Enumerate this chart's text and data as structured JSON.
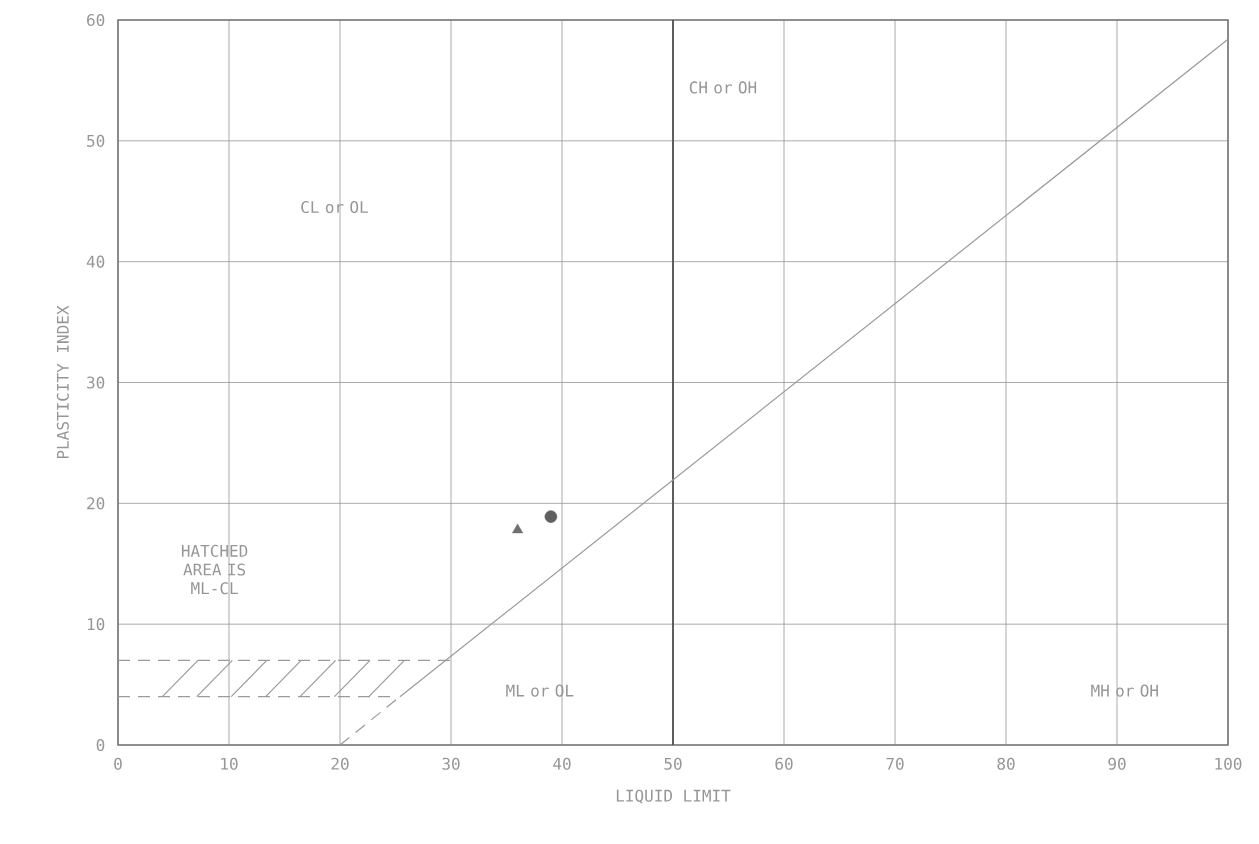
{
  "chart_data": {
    "type": "scatter",
    "xlabel": "LIQUID LIMIT",
    "ylabel": "PLASTICITY INDEX",
    "xlim": [
      0,
      100
    ],
    "ylim": [
      0,
      60
    ],
    "xticks": [
      0,
      10,
      20,
      30,
      40,
      50,
      60,
      70,
      80,
      90,
      100
    ],
    "yticks": [
      0,
      10,
      20,
      30,
      40,
      50,
      60
    ],
    "grid": true,
    "series": [
      {
        "marker": "triangle",
        "color": "#707070",
        "x": [
          36
        ],
        "values": [
          17.8
        ]
      },
      {
        "marker": "circle",
        "color": "#606060",
        "x": [
          39
        ],
        "values": [
          18.9
        ]
      },
      {
        "type": "line",
        "line_style": "solid",
        "color": "#9a9a9a",
        "x": [
          25.4,
          100
        ],
        "values": [
          4,
          58.4
        ]
      },
      {
        "type": "line",
        "line_style": "dashed",
        "color": "#9a9a9a",
        "x": [
          20,
          25.4
        ],
        "values": [
          0,
          4
        ]
      },
      {
        "type": "line",
        "line_style": "dashed",
        "color": "#9a9a9a",
        "x": [
          0,
          30
        ],
        "values": [
          7,
          7
        ]
      },
      {
        "type": "line",
        "line_style": "dashed",
        "color": "#9a9a9a",
        "x": [
          0,
          24.8
        ],
        "values": [
          4,
          4
        ]
      },
      {
        "type": "line",
        "line_style": "solid",
        "color": "#9a9a9a",
        "x": [
          4,
          7.2
        ],
        "values": [
          4,
          7
        ]
      },
      {
        "type": "line",
        "line_style": "solid",
        "color": "#9a9a9a",
        "x": [
          7.1,
          10.3
        ],
        "values": [
          4,
          7
        ]
      },
      {
        "type": "line",
        "line_style": "solid",
        "color": "#9a9a9a",
        "x": [
          10.2,
          13.4
        ],
        "values": [
          4,
          7
        ]
      },
      {
        "type": "line",
        "line_style": "solid",
        "color": "#9a9a9a",
        "x": [
          13.3,
          16.5
        ],
        "values": [
          4,
          7
        ]
      },
      {
        "type": "line",
        "line_style": "solid",
        "color": "#9a9a9a",
        "x": [
          16.4,
          19.6
        ],
        "values": [
          4,
          7
        ]
      },
      {
        "type": "line",
        "line_style": "solid",
        "color": "#9a9a9a",
        "x": [
          19.5,
          22.7
        ],
        "values": [
          4,
          7
        ]
      },
      {
        "type": "line",
        "line_style": "solid",
        "color": "#9a9a9a",
        "x": [
          22.6,
          25.8
        ],
        "values": [
          4,
          7
        ]
      }
    ],
    "ref_lines": [
      {
        "axis": "x",
        "value": 50,
        "color": "#555555"
      }
    ],
    "annotations": [
      "CH or OH",
      "CL or OL",
      "HATCHED AREA IS ML-CL",
      "ML or OL",
      "MH or OH"
    ]
  }
}
